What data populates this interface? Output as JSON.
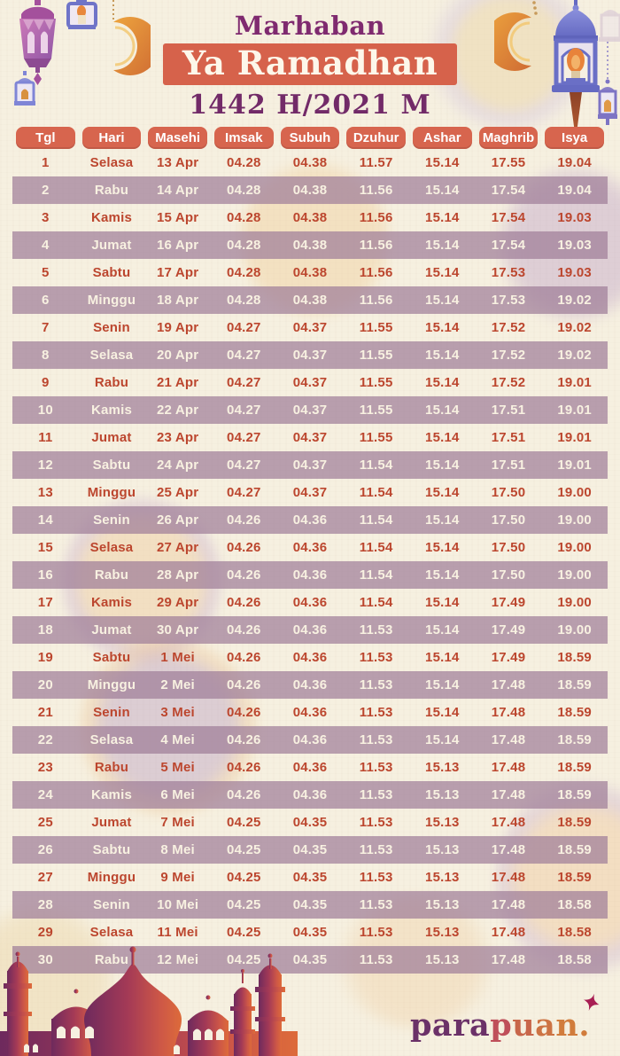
{
  "header": {
    "subtitle": "Marhaban",
    "title": "Ya Ramadhan",
    "year": "1442 H/2021 M"
  },
  "table": {
    "columns": [
      "Tgl",
      "Hari",
      "Masehi",
      "Imsak",
      "Subuh",
      "Dzuhur",
      "Ashar",
      "Maghrib",
      "Isya"
    ],
    "rows": [
      [
        "1",
        "Selasa",
        "13 Apr",
        "04.28",
        "04.38",
        "11.57",
        "15.14",
        "17.55",
        "19.04"
      ],
      [
        "2",
        "Rabu",
        "14 Apr",
        "04.28",
        "04.38",
        "11.56",
        "15.14",
        "17.54",
        "19.04"
      ],
      [
        "3",
        "Kamis",
        "15 Apr",
        "04.28",
        "04.38",
        "11.56",
        "15.14",
        "17.54",
        "19.03"
      ],
      [
        "4",
        "Jumat",
        "16 Apr",
        "04.28",
        "04.38",
        "11.56",
        "15.14",
        "17.54",
        "19.03"
      ],
      [
        "5",
        "Sabtu",
        "17 Apr",
        "04.28",
        "04.38",
        "11.56",
        "15.14",
        "17.53",
        "19.03"
      ],
      [
        "6",
        "Minggu",
        "18 Apr",
        "04.28",
        "04.38",
        "11.56",
        "15.14",
        "17.53",
        "19.02"
      ],
      [
        "7",
        "Senin",
        "19 Apr",
        "04.27",
        "04.37",
        "11.55",
        "15.14",
        "17.52",
        "19.02"
      ],
      [
        "8",
        "Selasa",
        "20 Apr",
        "04.27",
        "04.37",
        "11.55",
        "15.14",
        "17.52",
        "19.02"
      ],
      [
        "9",
        "Rabu",
        "21 Apr",
        "04.27",
        "04.37",
        "11.55",
        "15.14",
        "17.52",
        "19.01"
      ],
      [
        "10",
        "Kamis",
        "22 Apr",
        "04.27",
        "04.37",
        "11.55",
        "15.14",
        "17.51",
        "19.01"
      ],
      [
        "11",
        "Jumat",
        "23 Apr",
        "04.27",
        "04.37",
        "11.55",
        "15.14",
        "17.51",
        "19.01"
      ],
      [
        "12",
        "Sabtu",
        "24 Apr",
        "04.27",
        "04.37",
        "11.54",
        "15.14",
        "17.51",
        "19.01"
      ],
      [
        "13",
        "Minggu",
        "25 Apr",
        "04.27",
        "04.37",
        "11.54",
        "15.14",
        "17.50",
        "19.00"
      ],
      [
        "14",
        "Senin",
        "26 Apr",
        "04.26",
        "04.36",
        "11.54",
        "15.14",
        "17.50",
        "19.00"
      ],
      [
        "15",
        "Selasa",
        "27 Apr",
        "04.26",
        "04.36",
        "11.54",
        "15.14",
        "17.50",
        "19.00"
      ],
      [
        "16",
        "Rabu",
        "28 Apr",
        "04.26",
        "04.36",
        "11.54",
        "15.14",
        "17.50",
        "19.00"
      ],
      [
        "17",
        "Kamis",
        "29 Apr",
        "04.26",
        "04.36",
        "11.54",
        "15.14",
        "17.49",
        "19.00"
      ],
      [
        "18",
        "Jumat",
        "30 Apr",
        "04.26",
        "04.36",
        "11.53",
        "15.14",
        "17.49",
        "19.00"
      ],
      [
        "19",
        "Sabtu",
        "1 Mei",
        "04.26",
        "04.36",
        "11.53",
        "15.14",
        "17.49",
        "18.59"
      ],
      [
        "20",
        "Minggu",
        "2 Mei",
        "04.26",
        "04.36",
        "11.53",
        "15.14",
        "17.48",
        "18.59"
      ],
      [
        "21",
        "Senin",
        "3 Mei",
        "04.26",
        "04.36",
        "11.53",
        "15.14",
        "17.48",
        "18.59"
      ],
      [
        "22",
        "Selasa",
        "4 Mei",
        "04.26",
        "04.36",
        "11.53",
        "15.14",
        "17.48",
        "18.59"
      ],
      [
        "23",
        "Rabu",
        "5 Mei",
        "04.26",
        "04.36",
        "11.53",
        "15.13",
        "17.48",
        "18.59"
      ],
      [
        "24",
        "Kamis",
        "6 Mei",
        "04.26",
        "04.36",
        "11.53",
        "15.13",
        "17.48",
        "18.59"
      ],
      [
        "25",
        "Jumat",
        "7 Mei",
        "04.25",
        "04.35",
        "11.53",
        "15.13",
        "17.48",
        "18.59"
      ],
      [
        "26",
        "Sabtu",
        "8 Mei",
        "04.25",
        "04.35",
        "11.53",
        "15.13",
        "17.48",
        "18.59"
      ],
      [
        "27",
        "Minggu",
        "9 Mei",
        "04.25",
        "04.35",
        "11.53",
        "15.13",
        "17.48",
        "18.59"
      ],
      [
        "28",
        "Senin",
        "10 Mei",
        "04.25",
        "04.35",
        "11.53",
        "15.13",
        "17.48",
        "18.58"
      ],
      [
        "29",
        "Selasa",
        "11 Mei",
        "04.25",
        "04.35",
        "11.53",
        "15.13",
        "17.48",
        "18.58"
      ],
      [
        "30",
        "Rabu",
        "12 Mei",
        "04.25",
        "04.35",
        "11.53",
        "15.13",
        "17.48",
        "18.58"
      ]
    ]
  },
  "footer": {
    "logo": {
      "part1": "para",
      "part2": "puan",
      "dot": ".",
      "part1_color": "#6b3168",
      "part2_colors": [
        "#bf4f5a",
        "#c8664a",
        "#cd7343",
        "#d17c3c"
      ],
      "dot_color": "#d17c3c",
      "sparkle_color": "#a81e53"
    }
  },
  "decorations": {
    "top_left": [
      "ornate-lantern-icon",
      "candle-lantern-icon",
      "crescent-moon-icon",
      "small-lantern-icon"
    ],
    "top_right": [
      "crescent-moon-icon",
      "dome-lantern-icon",
      "small-lantern-icon"
    ],
    "bottom_left": "mosque-silhouette"
  },
  "colors": {
    "background": "#f6f0e0",
    "accent_orange": "#d7654e",
    "row_purple": "#b295aa",
    "text_brick": "#bc462e",
    "title_purple": "#7f2a6f",
    "row_text_light": "#f8f1e1"
  }
}
